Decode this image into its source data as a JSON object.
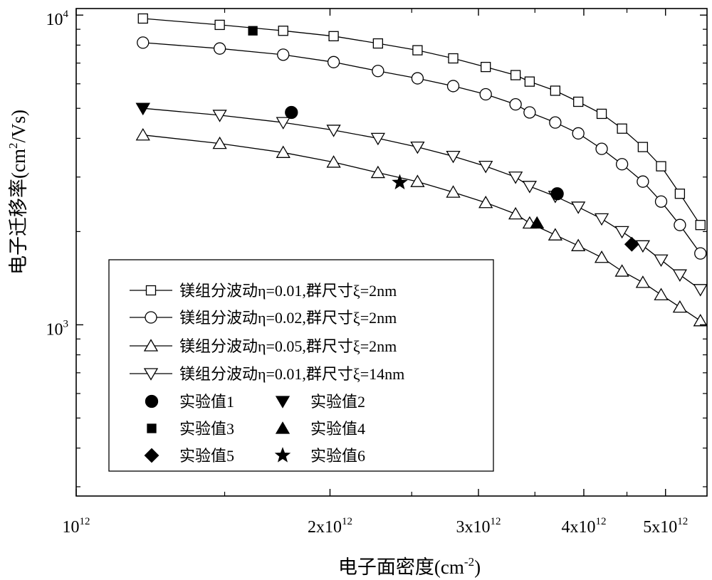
{
  "chart_data": {
    "type": "scatter",
    "title": "",
    "xlabel": "电子面密度(cm",
    "xlabel_sup": "-2",
    "xlabel_end": ")",
    "ylabel": "电子迁移率(cm",
    "ylabel_sup": "2",
    "ylabel_end": "/Vs)",
    "xscale": "log",
    "yscale": "log",
    "xlim": [
      1000000000000.0,
      5600000000000.0
    ],
    "ylim": [
      280,
      10500
    ],
    "grid": false,
    "legend_position": "bottom-left",
    "x_tick_labels": [
      {
        "value": 1000000000000.0,
        "base": "10",
        "exp": "12"
      },
      {
        "value": 2000000000000.0,
        "base": "2x10",
        "exp": "12"
      },
      {
        "value": 3000000000000.0,
        "base": "3x10",
        "exp": "12"
      },
      {
        "value": 4000000000000.0,
        "base": "4x10",
        "exp": "12"
      },
      {
        "value": 5000000000000.0,
        "base": "5x10",
        "exp": "12"
      }
    ],
    "y_tick_labels": [
      {
        "value": 1000,
        "base": "10",
        "exp": "3"
      },
      {
        "value": 10000,
        "base": "10",
        "exp": "4"
      }
    ],
    "series": [
      {
        "name": "镁组分波动η=0.01,群尺寸ξ=2nm",
        "marker": "square-open",
        "line": true,
        "x": [
          1200000000000.0,
          1480000000000.0,
          1760000000000.0,
          2020000000000.0,
          2280000000000.0,
          2540000000000.0,
          2800000000000.0,
          3060000000000.0,
          3320000000000.0,
          3450000000000.0,
          3700000000000.0,
          3940000000000.0,
          4200000000000.0,
          4440000000000.0,
          4700000000000.0,
          4940000000000.0,
          5200000000000.0,
          5500000000000.0
        ],
        "y": [
          9750,
          9300,
          8900,
          8550,
          8100,
          7700,
          7250,
          6800,
          6400,
          6100,
          5700,
          5250,
          4800,
          4300,
          3750,
          3250,
          2650,
          2100
        ]
      },
      {
        "name": "镁组分波动η=0.02,群尺寸ξ=2nm",
        "marker": "circle-open",
        "line": true,
        "x": [
          1200000000000.0,
          1480000000000.0,
          1760000000000.0,
          2020000000000.0,
          2280000000000.0,
          2540000000000.0,
          2800000000000.0,
          3060000000000.0,
          3320000000000.0,
          3450000000000.0,
          3700000000000.0,
          3940000000000.0,
          4200000000000.0,
          4440000000000.0,
          4700000000000.0,
          4940000000000.0,
          5200000000000.0,
          5500000000000.0
        ],
        "y": [
          8150,
          7800,
          7450,
          7050,
          6600,
          6250,
          5900,
          5550,
          5150,
          4850,
          4500,
          4150,
          3700,
          3300,
          2900,
          2500,
          2100,
          1700
        ]
      },
      {
        "name": "镁组分波动η=0.05,群尺寸ξ=2nm",
        "marker": "triangle-up-open",
        "line": true,
        "x": [
          1200000000000.0,
          1480000000000.0,
          1760000000000.0,
          2020000000000.0,
          2280000000000.0,
          2540000000000.0,
          2800000000000.0,
          3060000000000.0,
          3320000000000.0,
          3450000000000.0,
          3700000000000.0,
          3940000000000.0,
          4200000000000.0,
          4440000000000.0,
          4700000000000.0,
          4940000000000.0,
          5200000000000.0,
          5500000000000.0
        ],
        "y": [
          4100,
          3850,
          3600,
          3350,
          3100,
          2900,
          2680,
          2480,
          2280,
          2130,
          1950,
          1800,
          1650,
          1490,
          1370,
          1250,
          1140,
          1030
        ]
      },
      {
        "name": "镁组分波动η=0.01,群尺寸ξ=14nm",
        "marker": "triangle-down-open",
        "line": true,
        "x": [
          1200000000000.0,
          1480000000000.0,
          1760000000000.0,
          2020000000000.0,
          2280000000000.0,
          2540000000000.0,
          2800000000000.0,
          3060000000000.0,
          3320000000000.0,
          3450000000000.0,
          3700000000000.0,
          3940000000000.0,
          4200000000000.0,
          4440000000000.0,
          4700000000000.0,
          4940000000000.0,
          5200000000000.0,
          5500000000000.0
        ],
        "y": [
          5000,
          4750,
          4500,
          4250,
          4000,
          3750,
          3500,
          3250,
          3000,
          2800,
          2600,
          2400,
          2200,
          2000,
          1800,
          1620,
          1450,
          1300
        ]
      },
      {
        "name": "实验值1",
        "marker": "circle-filled",
        "line": false,
        "x": [
          1800000000000.0,
          3720000000000.0
        ],
        "y": [
          4850,
          2650
        ]
      },
      {
        "name": "实验值2",
        "marker": "triangle-down-filled",
        "line": false,
        "x": [
          1200000000000.0
        ],
        "y": [
          5000
        ]
      },
      {
        "name": "实验值3",
        "marker": "square-filled",
        "line": false,
        "x": [
          1620000000000.0
        ],
        "y": [
          8900
        ]
      },
      {
        "name": "实验值4",
        "marker": "triangle-up-filled",
        "line": false,
        "x": [
          3520000000000.0
        ],
        "y": [
          2130
        ]
      },
      {
        "name": "实验值5",
        "marker": "diamond-filled",
        "line": false,
        "x": [
          4560000000000.0
        ],
        "y": [
          1820
        ]
      },
      {
        "name": "实验值6",
        "marker": "star-filled",
        "line": false,
        "x": [
          2420000000000.0
        ],
        "y": [
          2880
        ]
      }
    ]
  }
}
